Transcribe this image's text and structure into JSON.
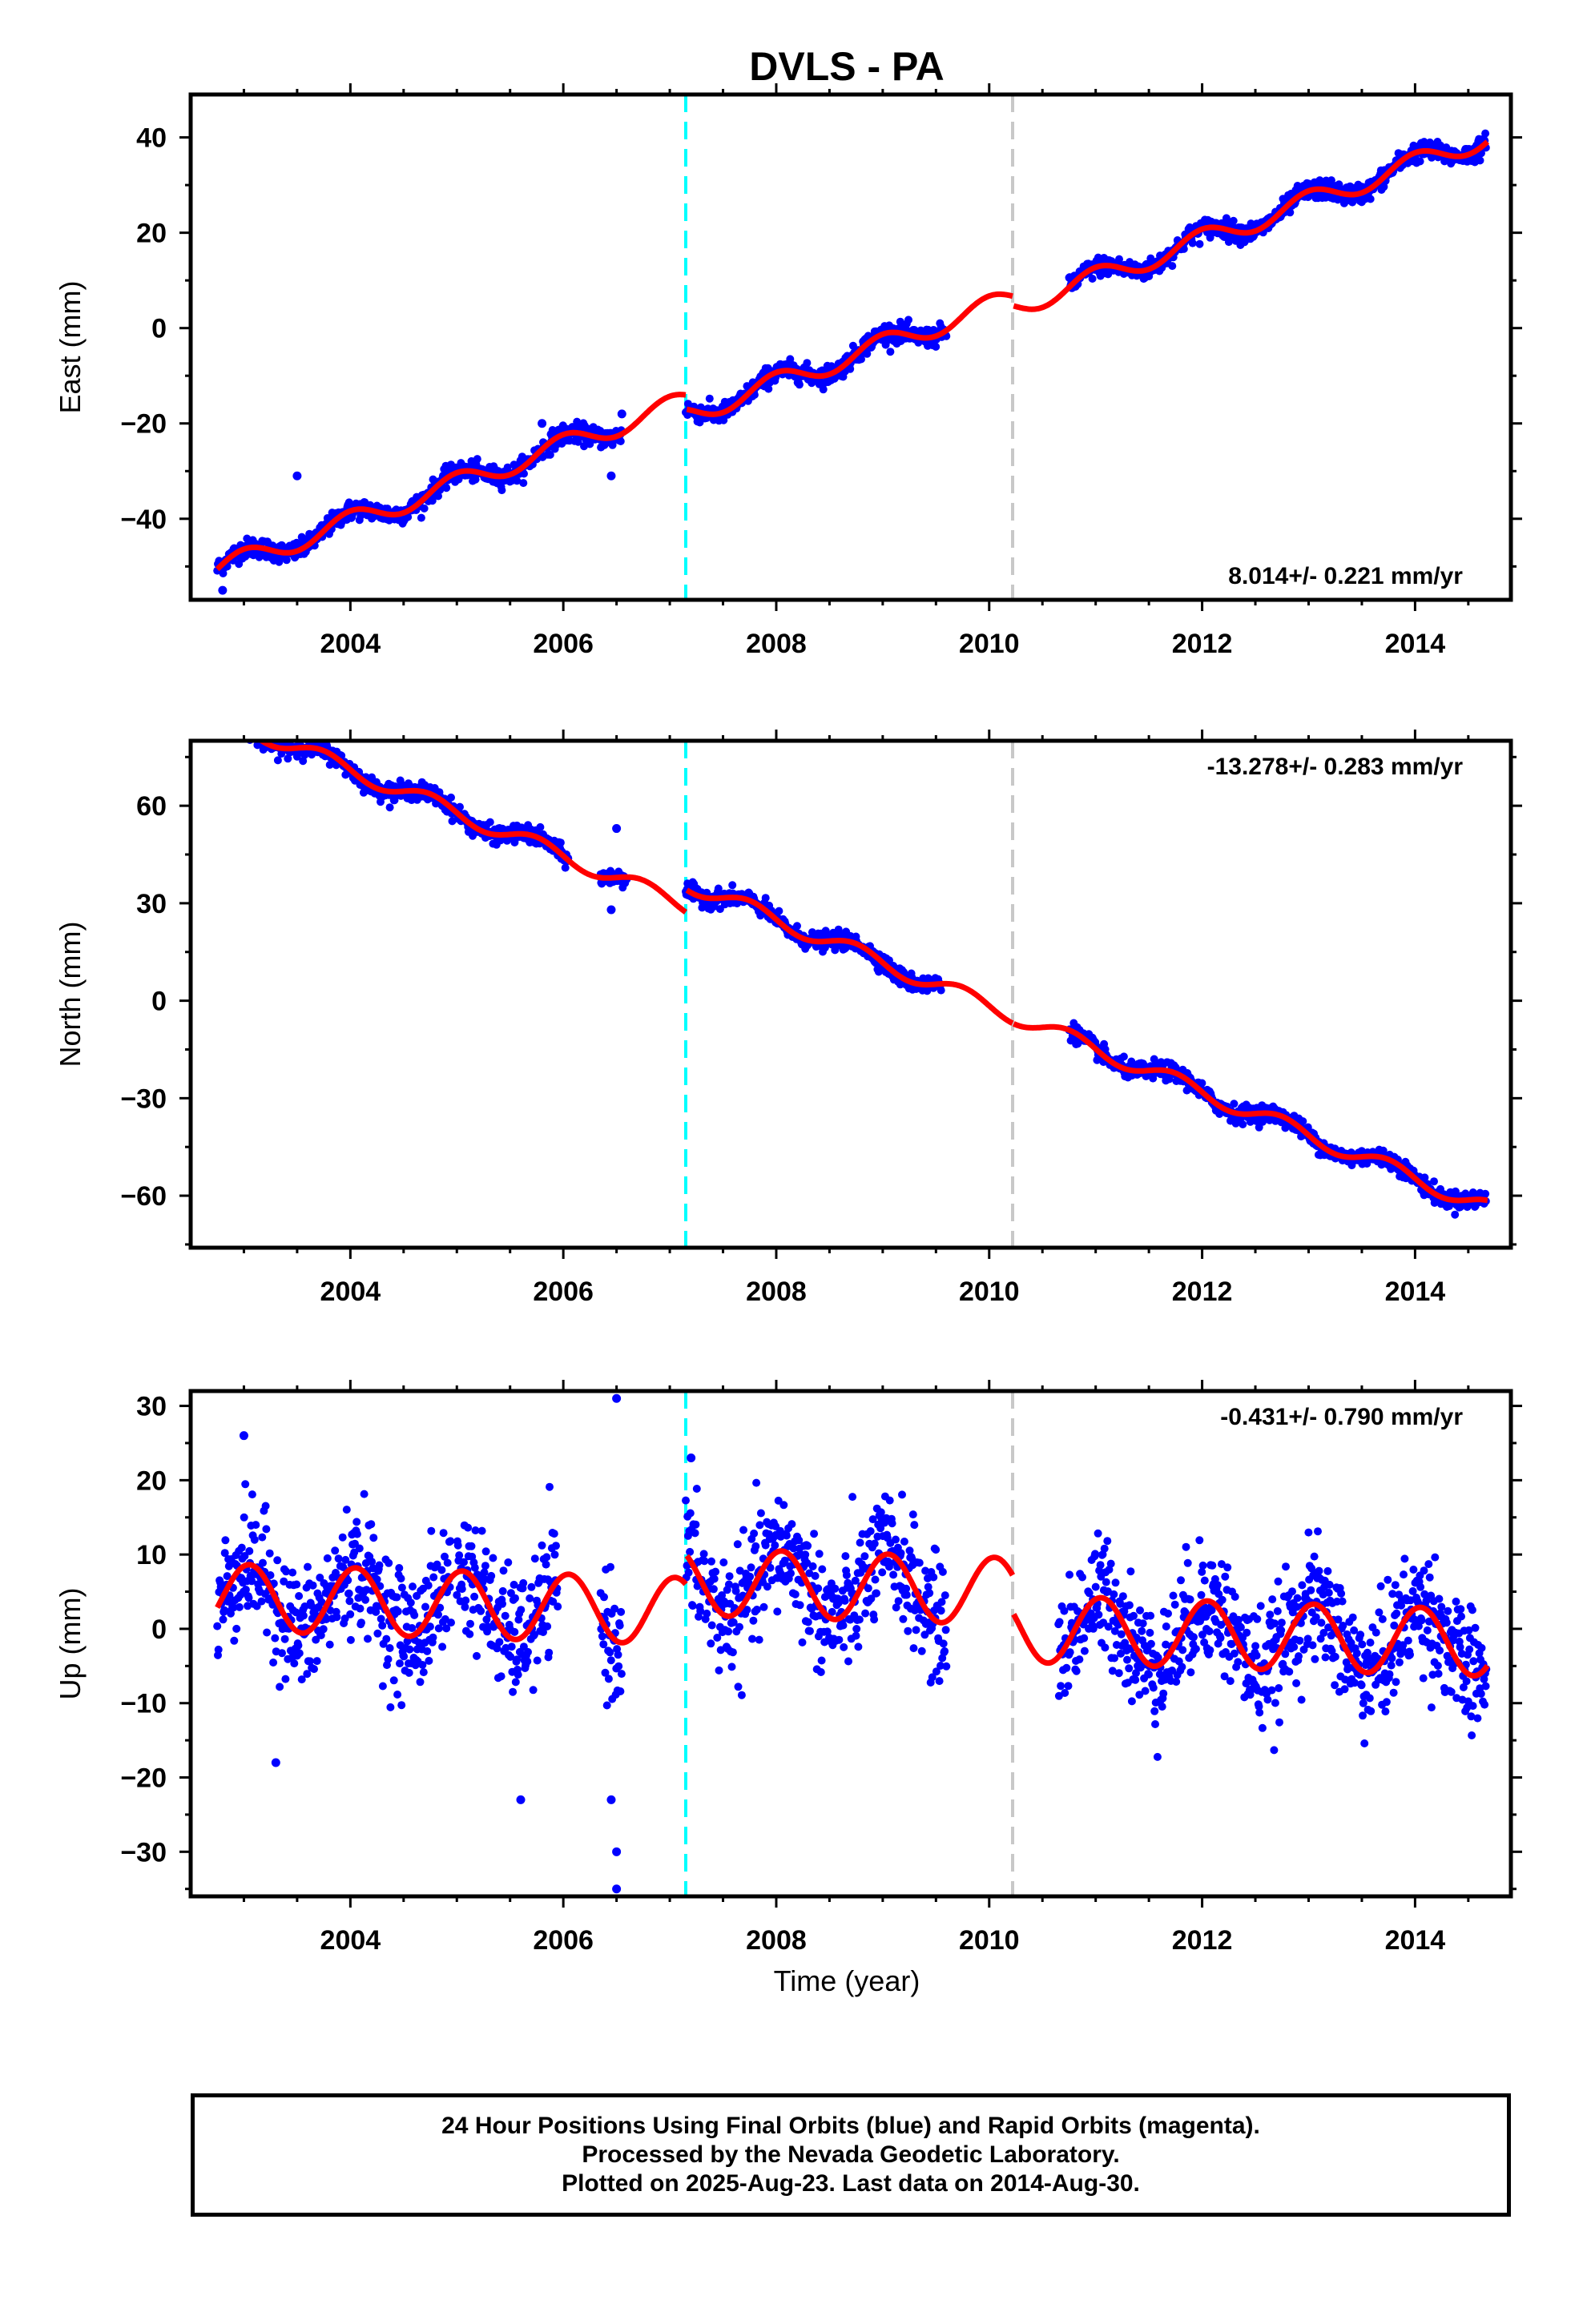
{
  "title": "DVLS - PA",
  "xlabel": "Time (year)",
  "x_ticks": [
    "2004",
    "2006",
    "2008",
    "2010",
    "2012",
    "2014"
  ],
  "footer": {
    "line1": "24 Hour Positions Using Final Orbits (blue) and Rapid Orbits (magenta).",
    "line2": "Processed by the Nevada Geodetic Laboratory.",
    "line3": "Plotted on 2025-Aug-23. Last data on 2014-Aug-30."
  },
  "colors": {
    "points": "#0000ff",
    "model": "#ff0000",
    "equipment_change": "#00ffff",
    "other_offset": "#c8c8c8"
  },
  "chart_data": [
    {
      "type": "scatter",
      "title": "DVLS - PA",
      "ylabel": "East (mm)",
      "xlabel": "",
      "xlim": [
        2002.5,
        2014.9
      ],
      "ylim": [
        -57,
        49
      ],
      "yticks": [
        -40,
        -20,
        0,
        20,
        40
      ],
      "rate_label": "8.014+/- 0.221 mm/yr",
      "rate_position": "bottom-right",
      "offsets": [
        {
          "x": 2007.15,
          "kind": "equipment"
        },
        {
          "x": 2010.22,
          "kind": "other"
        }
      ],
      "data_segments": [
        [
          2002.75,
          2006.55
        ],
        [
          2007.15,
          2009.6
        ],
        [
          2010.75,
          2014.67
        ]
      ],
      "model": {
        "slope": 8.014,
        "intercept_2008": -8.5,
        "annual_amplitude": 2.2,
        "annual_phase": 0.75,
        "offset_steps": [
          {
            "x": 2007.15,
            "dy": -3
          },
          {
            "x": 2010.22,
            "dy": -2
          }
        ]
      },
      "noise_mm": 1.0,
      "outliers": [
        {
          "x": 2003.5,
          "y": -31
        },
        {
          "x": 2005.8,
          "y": -20
        },
        {
          "x": 2006.55,
          "y": -18
        },
        {
          "x": 2006.45,
          "y": -31
        },
        {
          "x": 2002.8,
          "y": -55
        }
      ]
    },
    {
      "type": "scatter",
      "ylabel": "North (mm)",
      "xlabel": "",
      "xlim": [
        2002.5,
        2014.9
      ],
      "ylim": [
        -76,
        80
      ],
      "yticks": [
        -60,
        -30,
        0,
        30,
        60
      ],
      "rate_label": "-13.278+/- 0.283 mm/yr",
      "rate_position": "top-right",
      "offsets": [
        {
          "x": 2007.15,
          "kind": "equipment"
        },
        {
          "x": 2010.22,
          "kind": "other"
        }
      ],
      "data_segments": [
        [
          2002.75,
          2006.05
        ],
        [
          2006.35,
          2006.6
        ],
        [
          2007.15,
          2009.55
        ],
        [
          2010.75,
          2014.67
        ]
      ],
      "model": {
        "slope": -13.278,
        "intercept_2008": 18,
        "annual_amplitude": 2.5,
        "annual_phase": 0.5,
        "offset_steps": [
          {
            "x": 2007.15,
            "dy": 7
          },
          {
            "x": 2010.22,
            "dy": 0
          }
        ]
      },
      "noise_mm": 1.3,
      "outliers": [
        {
          "x": 2006.5,
          "y": 53
        },
        {
          "x": 2006.45,
          "y": 28
        }
      ]
    },
    {
      "type": "scatter",
      "ylabel": "Up (mm)",
      "xlabel": "Time (year)",
      "xlim": [
        2002.5,
        2014.9
      ],
      "ylim": [
        -36,
        32
      ],
      "yticks": [
        -30,
        -20,
        -10,
        0,
        10,
        20,
        30
      ],
      "rate_label": "-0.431+/- 0.790 mm/yr",
      "rate_position": "top-right",
      "offsets": [
        {
          "x": 2007.15,
          "kind": "equipment"
        },
        {
          "x": 2010.22,
          "kind": "other"
        }
      ],
      "data_segments": [
        [
          2002.75,
          2004.95
        ],
        [
          2005.0,
          2005.95
        ],
        [
          2006.35,
          2006.55
        ],
        [
          2007.15,
          2009.6
        ],
        [
          2010.65,
          2014.67
        ]
      ],
      "model": {
        "slope": -0.431,
        "intercept_2008": 2,
        "annual_amplitude": 4.5,
        "annual_phase": 0.8,
        "offset_steps": [
          {
            "x": 2007.15,
            "dy": 4
          },
          {
            "x": 2010.22,
            "dy": -5
          }
        ]
      },
      "noise_mm": 4.0,
      "outliers": [
        {
          "x": 2003.0,
          "y": 26
        },
        {
          "x": 2006.5,
          "y": 31
        },
        {
          "x": 2006.5,
          "y": -35
        },
        {
          "x": 2006.5,
          "y": -30
        },
        {
          "x": 2003.3,
          "y": -18
        },
        {
          "x": 2005.6,
          "y": -23
        },
        {
          "x": 2006.45,
          "y": -23
        },
        {
          "x": 2007.2,
          "y": 23
        }
      ]
    }
  ]
}
